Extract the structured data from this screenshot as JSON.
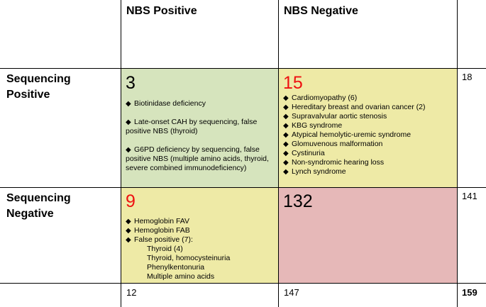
{
  "headers": {
    "col_nbs_positive": "NBS Positive",
    "col_nbs_negative": "NBS Negative"
  },
  "rows": {
    "seq_positive": [
      "Sequencing",
      "Positive"
    ],
    "seq_negative": [
      "Sequencing",
      "Negative"
    ]
  },
  "cells": {
    "pos_pos": {
      "count": "3",
      "items": [
        "Biotinidase deficiency",
        "Late-onset CAH by sequencing, false positive NBS (thyroid)",
        "G6PD deficiency by sequencing, false positive NBS (multiple amino acids, thyroid, severe combined immunodeficiency)"
      ]
    },
    "pos_neg": {
      "count": "15",
      "items": [
        "Cardiomyopathy (6)",
        "Hereditary breast and ovarian cancer (2)",
        "Supravalvular aortic stenosis",
        "KBG syndrome",
        "Atypical hemolytic-uremic syndrome",
        "Glomuvenous malformation",
        "Cystinuria",
        "Non-syndromic hearing loss",
        "Lynch syndrome"
      ]
    },
    "neg_pos": {
      "count": "9",
      "items": [
        "Hemoglobin FAV",
        "Hemoglobin FAB",
        "False positive (7):"
      ],
      "subitems": [
        "Thyroid (4)",
        "Thyroid, homocysteinuria",
        "Phenylkentonuria",
        "Multiple amino acids"
      ]
    },
    "neg_neg": {
      "count": "132"
    }
  },
  "row_totals": {
    "seq_positive": "18",
    "seq_negative": "141"
  },
  "col_totals": {
    "nbs_positive": "12",
    "nbs_negative": "147",
    "grand": "159"
  },
  "colors": {
    "green_cell": "#d6e4bd",
    "yellow_cell": "#eeeaa6",
    "pink_cell": "#e6b8b8",
    "highlight_number": "#ee1111"
  },
  "icons": {
    "bullet": "diamond-bullet-icon"
  }
}
